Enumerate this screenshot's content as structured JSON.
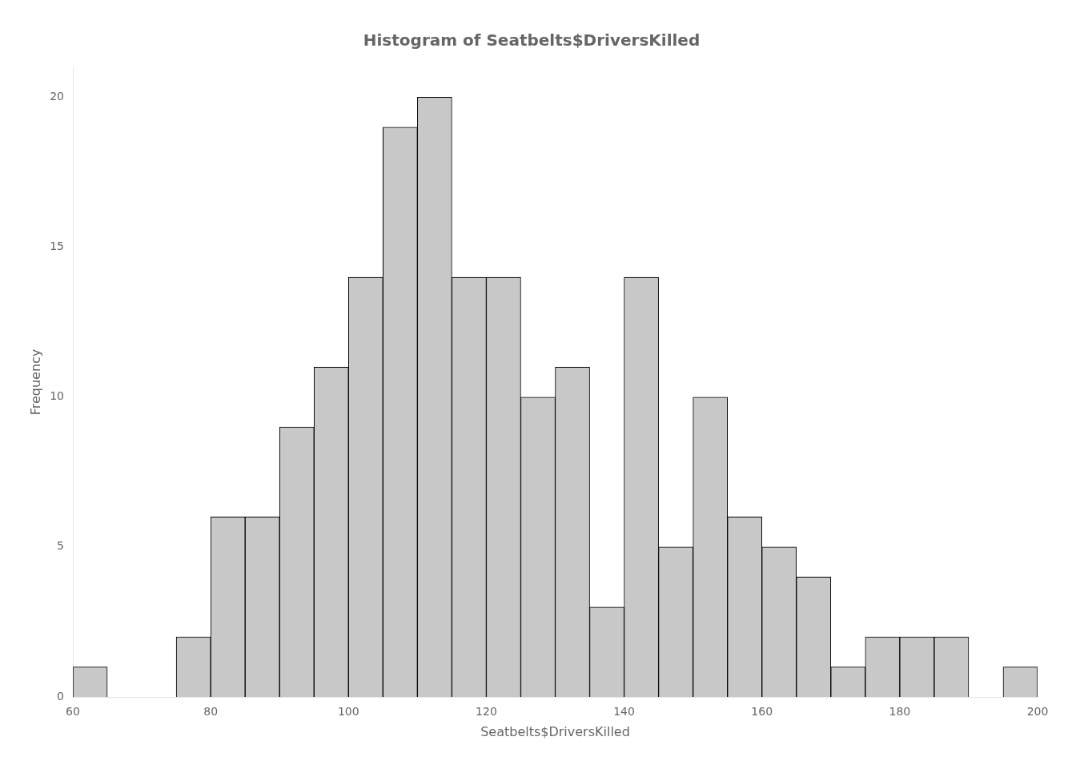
{
  "chart_data": {
    "type": "histogram",
    "title": "Histogram of Seatbelts$DriversKilled",
    "xlabel": "Seatbelts$DriversKilled",
    "ylabel": "Frequency",
    "bins": [
      60,
      65,
      70,
      75,
      80,
      85,
      90,
      95,
      100,
      105,
      110,
      115,
      120,
      125,
      130,
      135,
      140,
      145,
      150,
      155,
      160,
      165,
      170,
      175,
      180,
      185,
      190,
      195,
      200
    ],
    "values": [
      1,
      0,
      0,
      2,
      6,
      6,
      9,
      11,
      14,
      19,
      20,
      14,
      14,
      10,
      11,
      3,
      14,
      5,
      10,
      6,
      5,
      4,
      1,
      2,
      2,
      2,
      0,
      1
    ],
    "color": "#c8c8c8",
    "xlim": [
      60,
      200
    ],
    "ylim": [
      0,
      21
    ],
    "xticks": [
      60,
      80,
      100,
      120,
      140,
      160,
      180,
      200
    ],
    "yticks": [
      0,
      5,
      10,
      15,
      20
    ],
    "grid": false,
    "legend": false
  }
}
